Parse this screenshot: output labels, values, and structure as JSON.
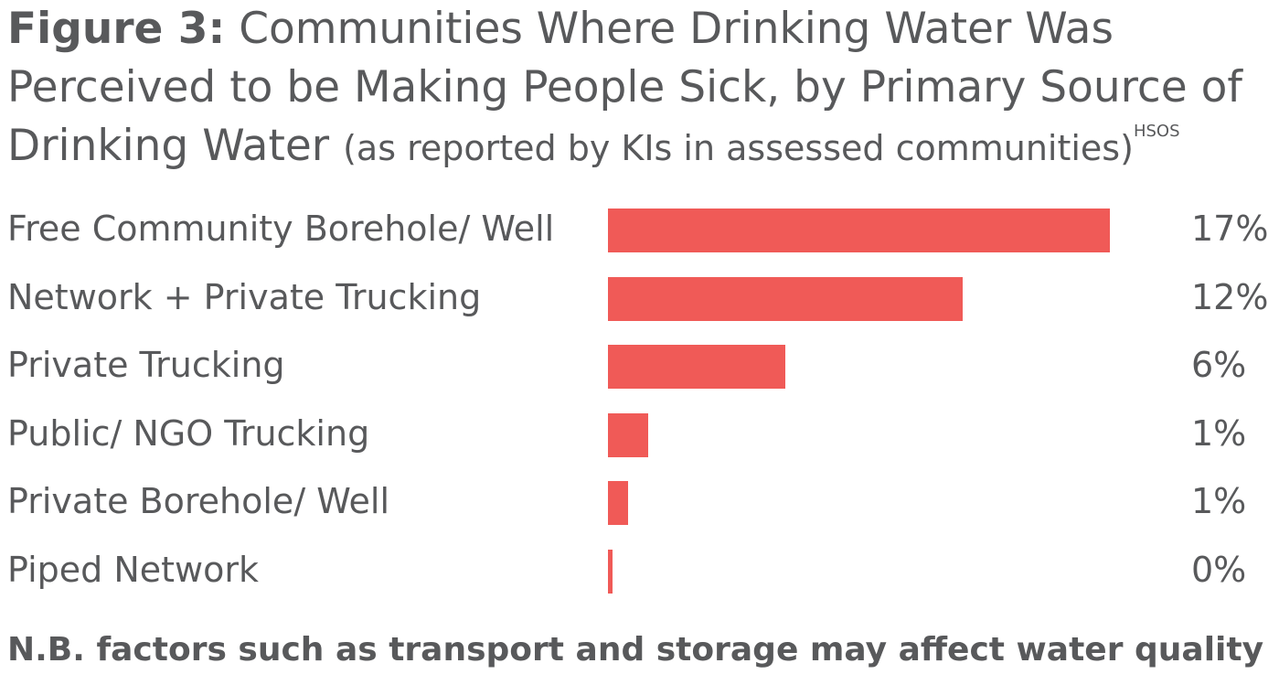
{
  "title": {
    "figure_label": "Figure 3:",
    "main": "Communities Where Drinking Water Was Perceived to be Making People Sick, by Primary Source of Drinking Water",
    "subtitle": "(as reported by KIs in assessed communities)",
    "superscript": "HSOS"
  },
  "note": "N.B. factors such as transport and storage may affect water quality",
  "colors": {
    "bar": "#f05a57",
    "text": "#58595b"
  },
  "chart_data": {
    "type": "bar",
    "orientation": "horizontal",
    "categories": [
      "Free Community Borehole/ Well",
      "Network + Private Trucking",
      "Private Trucking",
      "Public/ NGO Trucking",
      "Private Borehole/ Well",
      "Piped Network"
    ],
    "values": [
      17,
      12,
      6,
      1,
      1,
      0
    ],
    "value_labels": [
      "17%",
      "12%",
      "6%",
      "1%",
      "1%",
      "0%"
    ],
    "xlim": [
      0,
      20
    ],
    "grid": false,
    "legend": "none"
  }
}
